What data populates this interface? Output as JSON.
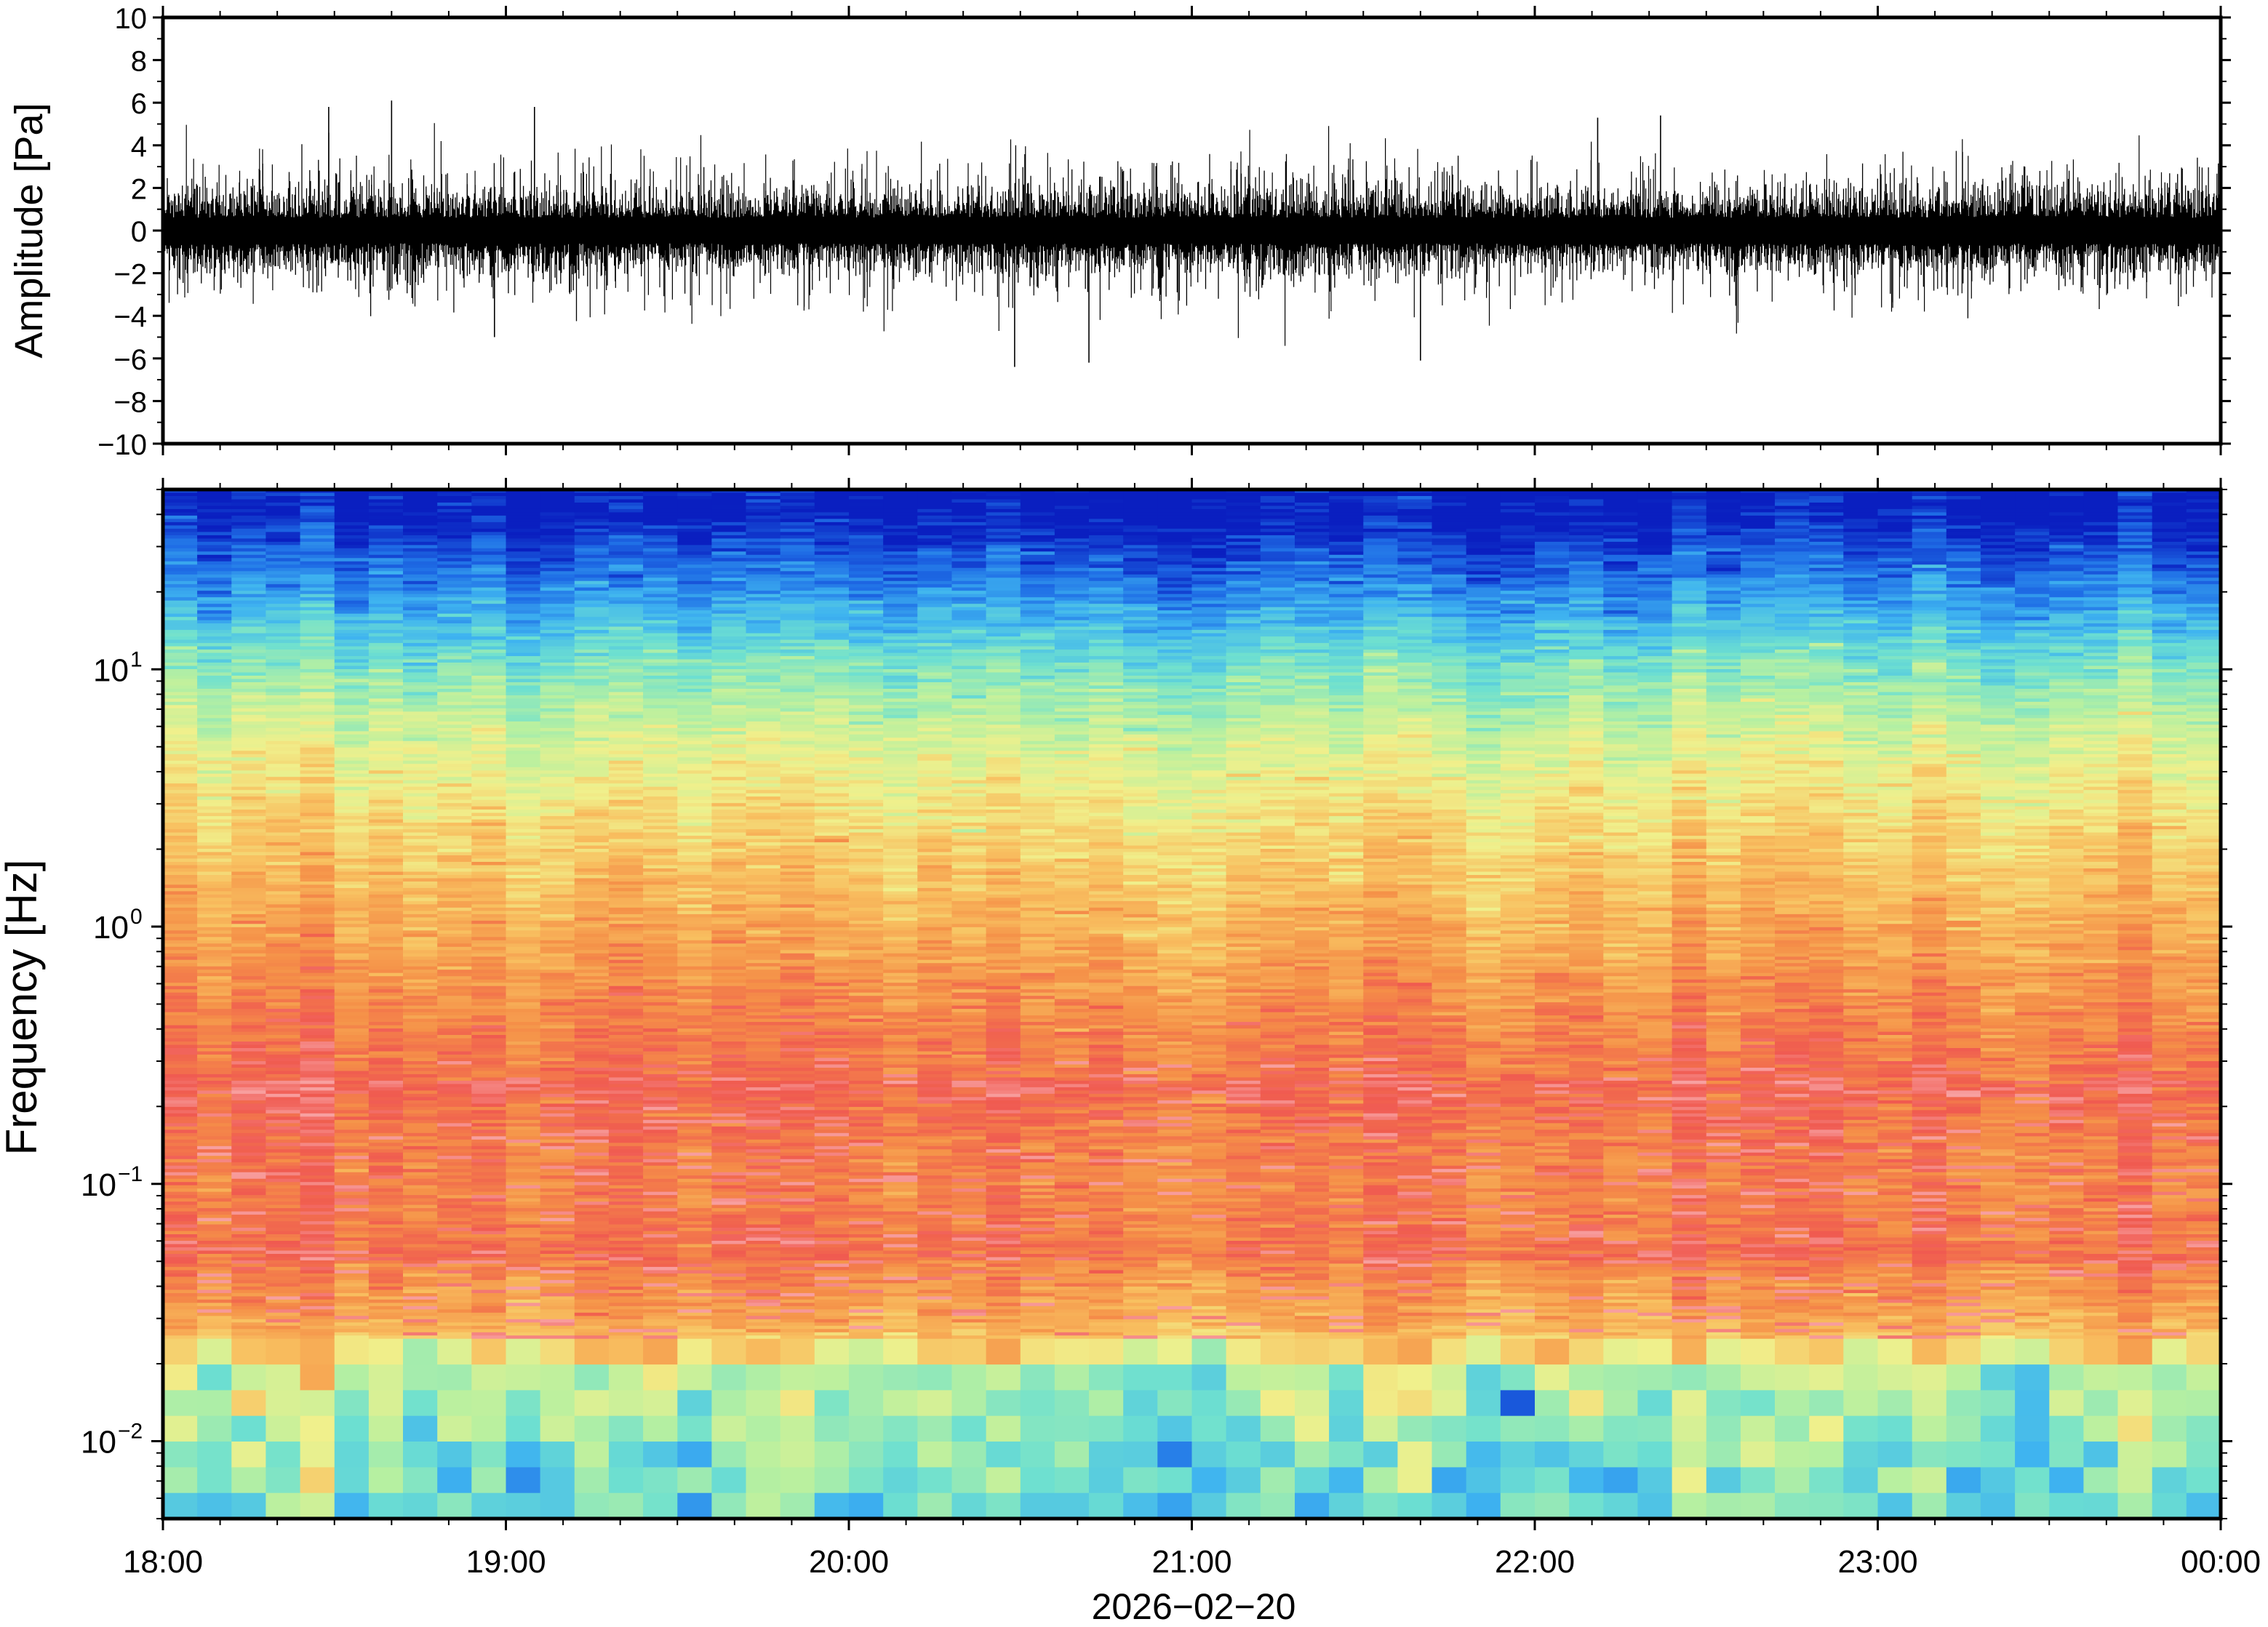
{
  "chart_data": [
    {
      "type": "line",
      "panel": "waveform",
      "ylabel": "Amplitude [Pa]",
      "ylim": [
        -10,
        10
      ],
      "yticks": [
        10,
        8,
        6,
        4,
        2,
        0,
        -2,
        -4,
        -6,
        -8,
        -10
      ],
      "ytick_labels": [
        "10",
        "8",
        "6",
        "4",
        "2",
        "0",
        "−2",
        "−4",
        "−6",
        "−8",
        "−10"
      ],
      "x_range": [
        "18:00",
        "00:00"
      ],
      "series": [
        {
          "color": "#000000",
          "description_of_values": "noise trace around 0 Pa, typical peaks ±2–3 Pa",
          "peaks": [
            {
              "time": "18:29",
              "value": 5.8
            },
            {
              "time": "18:40",
              "value": 6.1
            },
            {
              "time": "18:58",
              "value": -5.0
            },
            {
              "time": "19:05",
              "value": 5.8
            },
            {
              "time": "20:29",
              "value": -6.4
            },
            {
              "time": "20:42",
              "value": -6.2
            },
            {
              "time": "21:40",
              "value": -6.1
            },
            {
              "time": "22:11",
              "value": 5.3
            },
            {
              "time": "22:22",
              "value": 5.4
            }
          ]
        }
      ]
    },
    {
      "type": "heatmap",
      "panel": "spectrogram",
      "ylabel": "Frequency [Hz]",
      "yscale": "log",
      "ylim": [
        0.005,
        50
      ],
      "yticks": [
        {
          "base": "10",
          "exp": "1",
          "value": 10
        },
        {
          "base": "10",
          "exp": "0",
          "value": 1
        },
        {
          "base": "10",
          "exp": "−1",
          "value": 0.1
        },
        {
          "base": "10",
          "exp": "−2",
          "value": 0.01
        }
      ],
      "xlabel": "2026−02−20",
      "xticks": [
        "18:00",
        "19:00",
        "20:00",
        "21:00",
        "22:00",
        "23:00",
        "00:00"
      ],
      "colormap": [
        "#0a1fc0",
        "#1f6ee6",
        "#3fb4f0",
        "#6ee0d0",
        "#b8f0a0",
        "#f0f08c",
        "#f8c060",
        "#f59048",
        "#f05a50",
        "#f8a0a0"
      ],
      "time_columns": 60,
      "description_of_values": "power highest (red/pink) near 0.05–0.3 Hz, decreasing toward high frequency (blue above 20 Hz); lowest frequencies below 0.02 Hz green/cyan"
    }
  ]
}
